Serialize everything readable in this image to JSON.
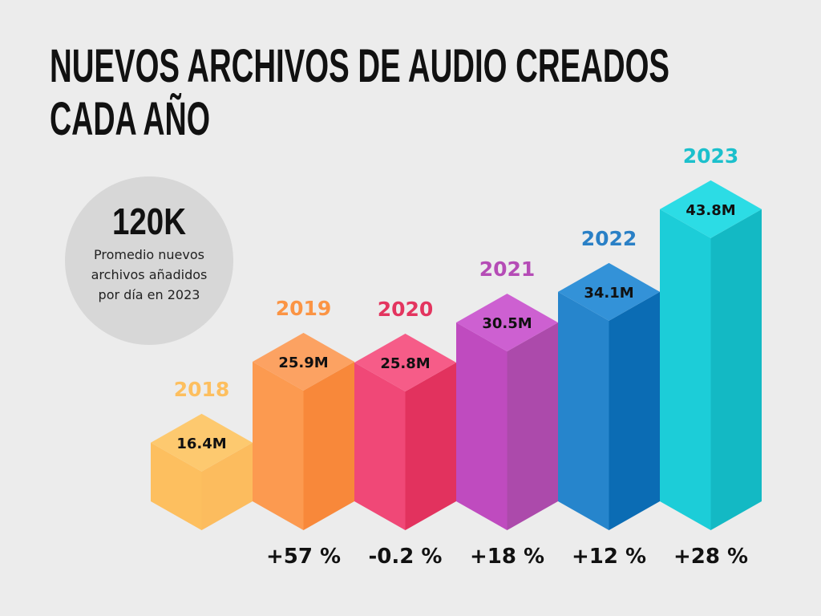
{
  "title": {
    "line1": "NUEVOS ARCHIVOS DE AUDIO CREADOS",
    "line2": "CADA AÑO"
  },
  "stat": {
    "value": "120K",
    "caption": [
      "Promedio nuevos",
      "archivos añadidos",
      "por día en 2023"
    ]
  },
  "chart_data": {
    "type": "bar",
    "title": "Nuevos archivos de audio creados cada año",
    "categories": [
      "2018",
      "2019",
      "2020",
      "2021",
      "2022",
      "2023"
    ],
    "values": [
      16.4,
      25.9,
      25.8,
      30.5,
      34.1,
      43.8
    ],
    "value_labels": [
      "16.4M",
      "25.9M",
      "25.8M",
      "30.5M",
      "34.1M",
      "43.8M"
    ],
    "changes": [
      "",
      "+57 %",
      "-0.2 %",
      "+18 %",
      "+12 %",
      "+28 %"
    ],
    "unit": "millions",
    "colors": [
      {
        "top": "#fdc96f",
        "left": "#fdbf5f",
        "right": "#fcbc5e",
        "label": "#fdbf5f"
      },
      {
        "top": "#fca262",
        "left": "#fc9a50",
        "right": "#f8883a",
        "label": "#fb9444"
      },
      {
        "top": "#f65c88",
        "left": "#f04877",
        "right": "#e2325e",
        "label": "#e3355f"
      },
      {
        "top": "#cd60d1",
        "left": "#bf4bbf",
        "right": "#ac4aab",
        "label": "#b54cb6"
      },
      {
        "top": "#3392d8",
        "left": "#2685cc",
        "right": "#0b6cb4",
        "label": "#2a80c6"
      },
      {
        "top": "#2cdce5",
        "left": "#1ccdd8",
        "right": "#13b9c4",
        "label": "#1cc0cc"
      }
    ]
  }
}
